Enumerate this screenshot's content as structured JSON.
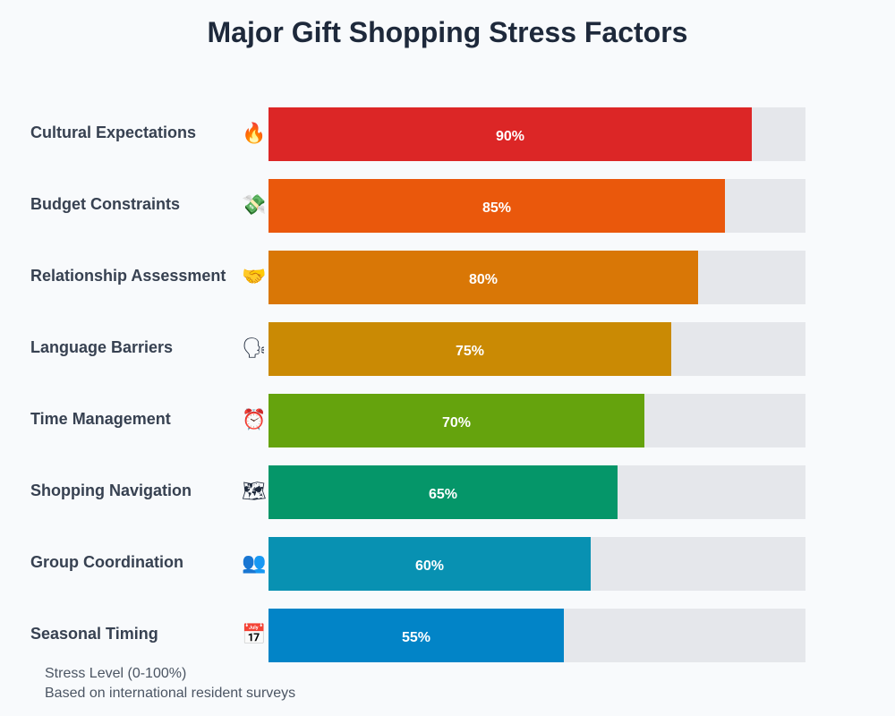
{
  "chart_data": {
    "type": "bar",
    "orientation": "horizontal",
    "title": "Major Gift Shopping Stress Factors",
    "categories": [
      "Cultural Expectations",
      "Budget Constraints",
      "Relationship Assessment",
      "Language Barriers",
      "Time Management",
      "Shopping Navigation",
      "Group Coordination",
      "Seasonal Timing"
    ],
    "values": [
      90,
      85,
      80,
      75,
      70,
      65,
      60,
      55
    ],
    "value_labels": [
      "90%",
      "85%",
      "80%",
      "75%",
      "70%",
      "65%",
      "60%",
      "55%"
    ],
    "icons": [
      "🔥",
      "💸",
      "🤝",
      "🗣",
      "⏰",
      "🗺",
      "👥",
      "📅"
    ],
    "icon_names": [
      "fire-icon",
      "money-with-wings-icon",
      "relationship-icon",
      "speaking-head-icon",
      "alarm-clock-icon",
      "navigation-icon",
      "group-icon",
      "calendar-icon"
    ],
    "colors": [
      "#dc2626",
      "#ea580c",
      "#d97706",
      "#ca8a04",
      "#65a30d",
      "#059669",
      "#0891b2",
      "#0284c7"
    ],
    "xlim": [
      0,
      100
    ],
    "xlabel": "Stress Level (0-100%)",
    "note": "Based on international resident surveys"
  }
}
